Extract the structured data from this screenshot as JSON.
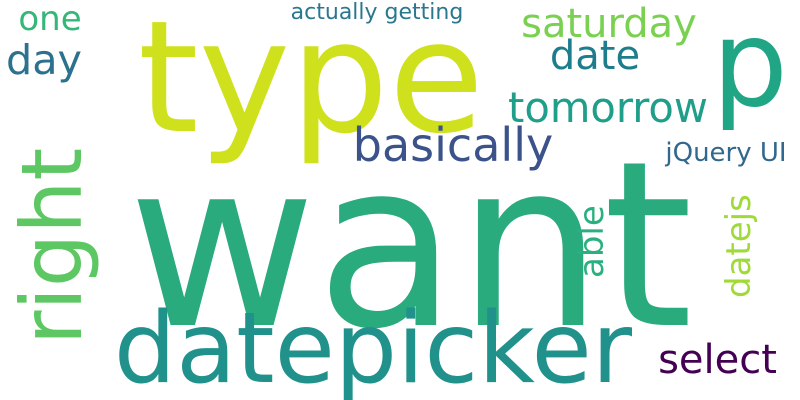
{
  "words": [
    {
      "text": "want",
      "color": "#2AAB7E"
    },
    {
      "text": "type",
      "color": "#CFE11C"
    },
    {
      "text": "p",
      "color": "#21A685"
    },
    {
      "text": "datepicker",
      "color": "#21918C"
    },
    {
      "text": "right",
      "color": "#5DC863"
    },
    {
      "text": "saturday",
      "color": "#7AD151"
    },
    {
      "text": "tomorrow",
      "color": "#1F9E89"
    },
    {
      "text": "basically",
      "color": "#3B528B"
    },
    {
      "text": "date",
      "color": "#1E7D8C"
    },
    {
      "text": "one",
      "color": "#35B779"
    },
    {
      "text": "day",
      "color": "#2C728E"
    },
    {
      "text": "jQuery UI",
      "color": "#31688E"
    },
    {
      "text": "datejs",
      "color": "#A0DA39"
    },
    {
      "text": "able",
      "color": "#2AB07F"
    },
    {
      "text": "select",
      "color": "#440154"
    },
    {
      "text": "actually getting",
      "color": "#2A788E"
    }
  ]
}
